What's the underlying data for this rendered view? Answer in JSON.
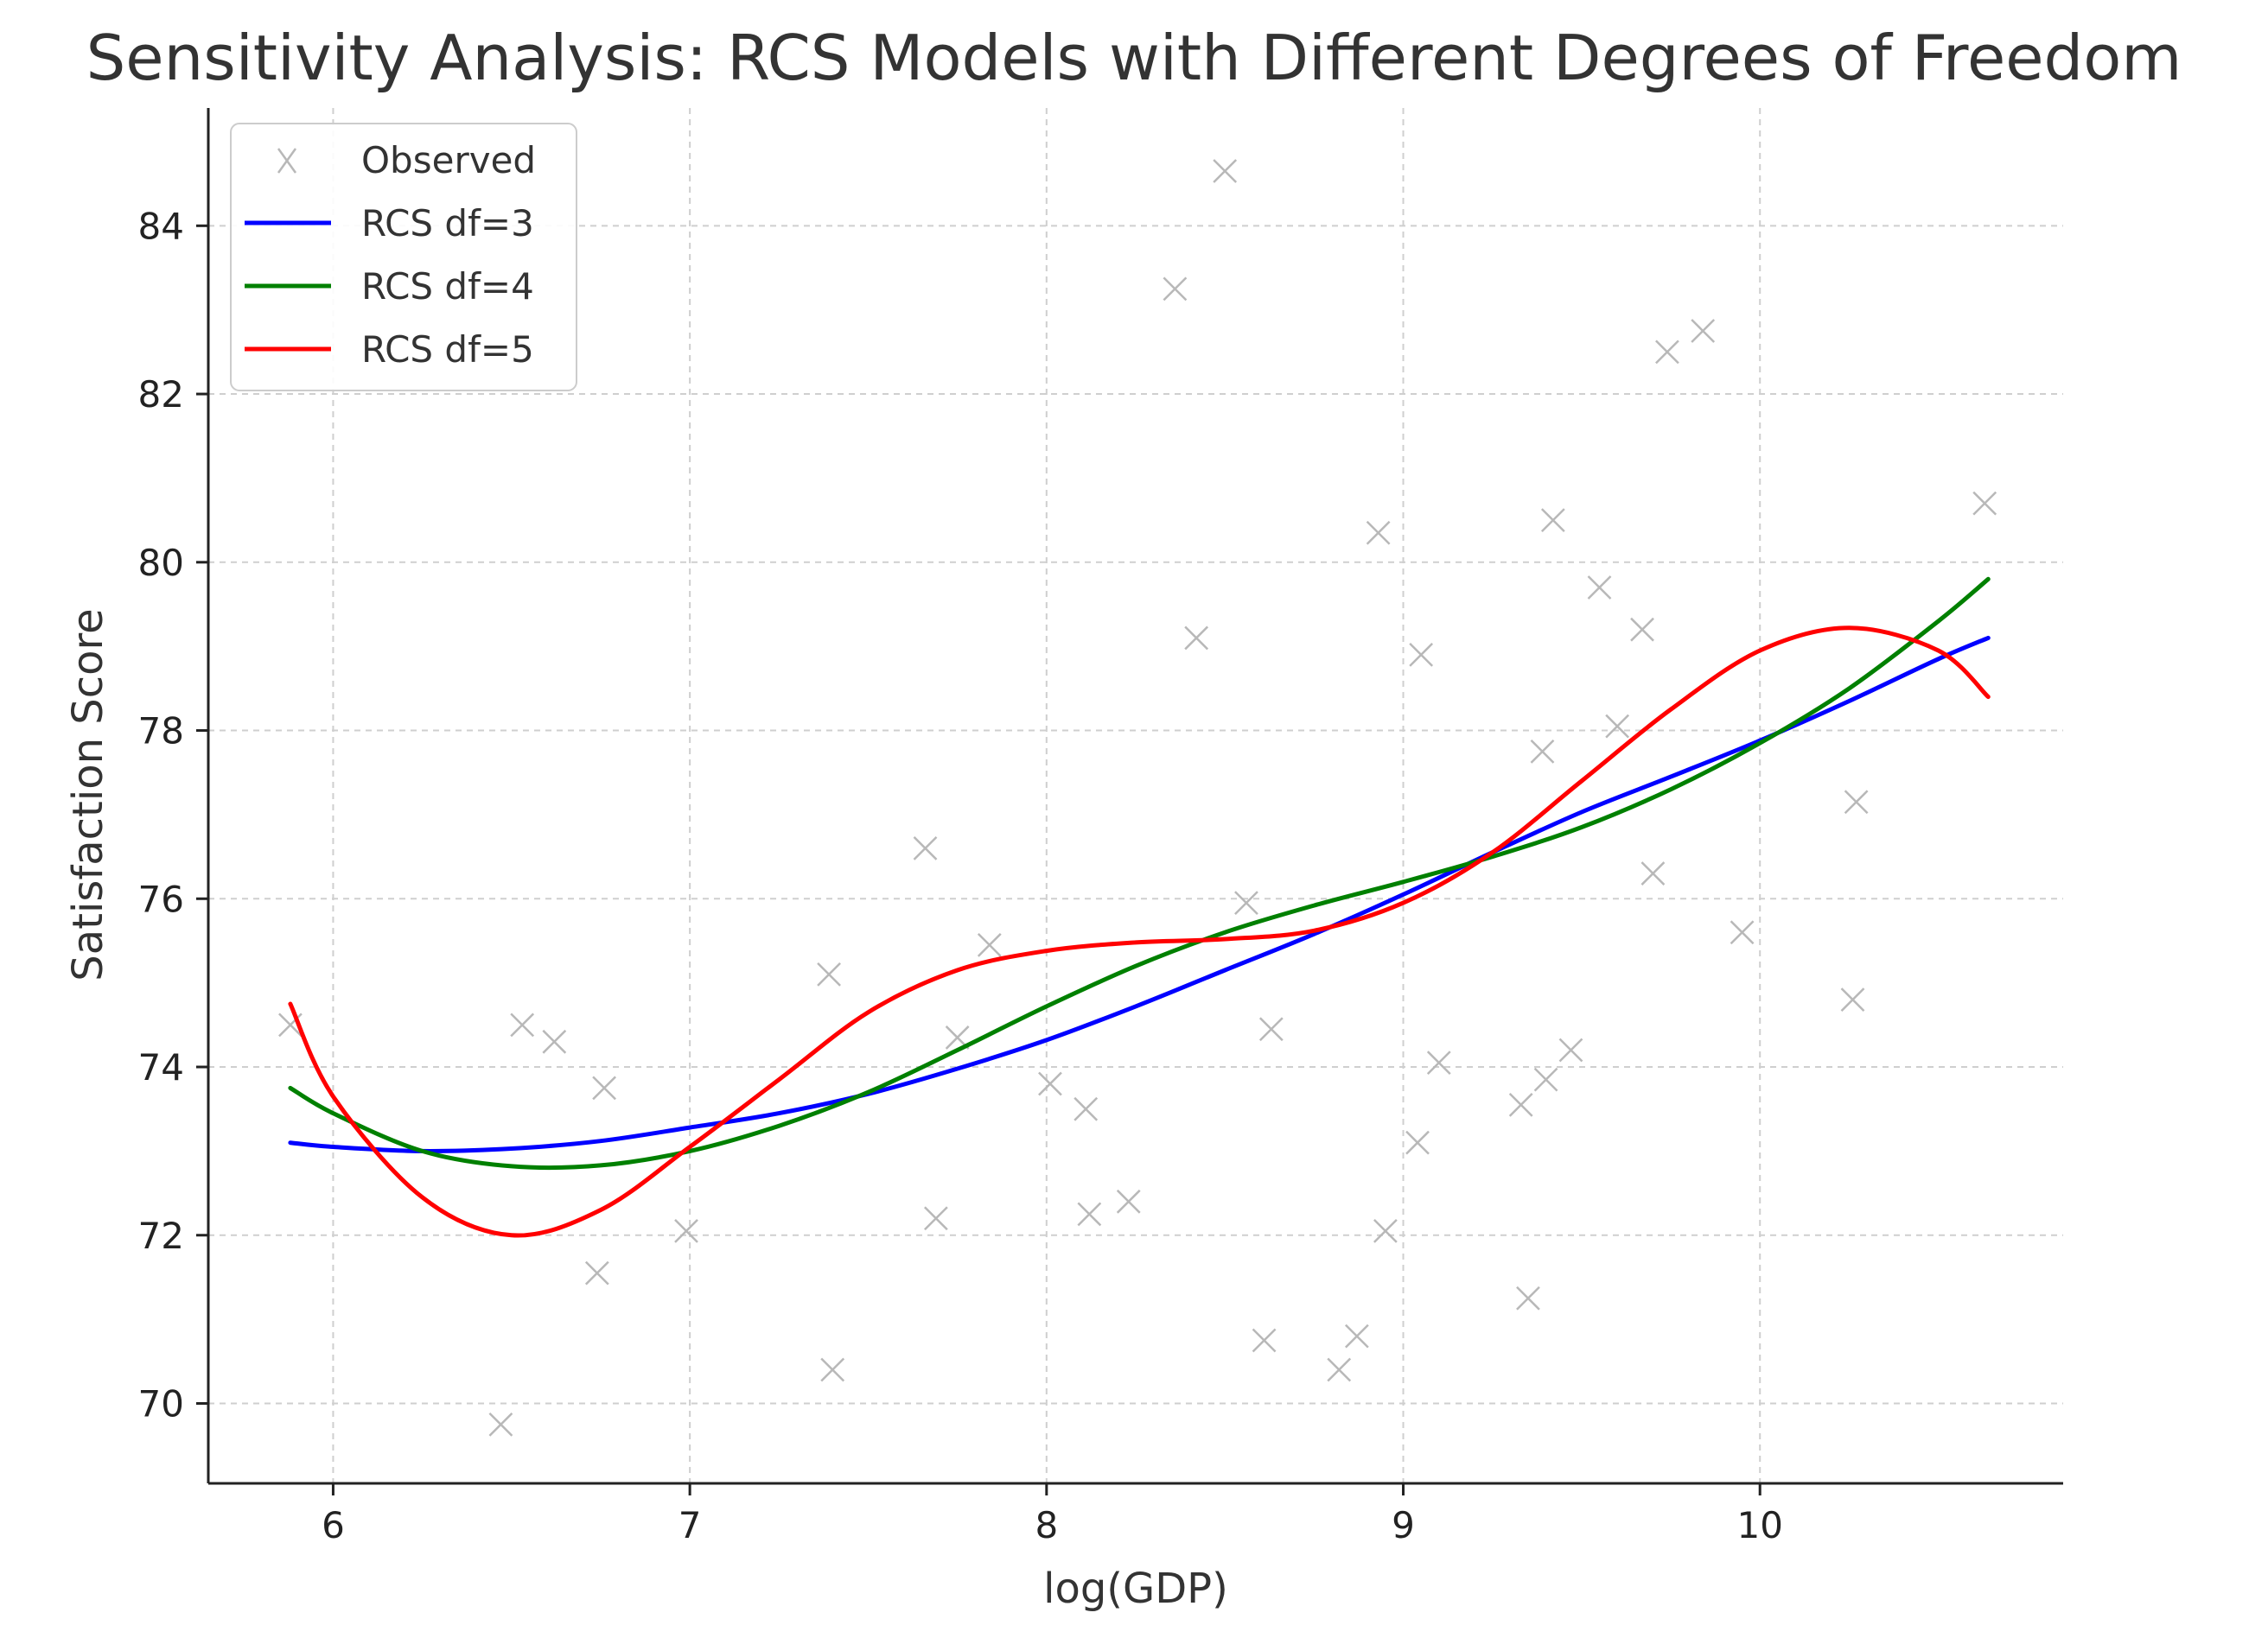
{
  "chart_data": {
    "type": "scatter",
    "title": "Sensitivity Analysis: RCS Models with Different Degrees of Freedom",
    "xlabel": "log(GDP)",
    "ylabel": "Satisfaction Score",
    "xlim": [
      5.65,
      10.85
    ],
    "ylim": [
      69.05,
      85.4
    ],
    "xticks": [
      6,
      7,
      8,
      9,
      10
    ],
    "yticks": [
      70,
      72,
      74,
      76,
      78,
      80,
      82,
      84
    ],
    "grid": true,
    "legend_position": "top-left",
    "observed": {
      "name": "Observed",
      "color": "#b8b8b8",
      "points": [
        [
          5.88,
          74.5
        ],
        [
          6.47,
          69.75
        ],
        [
          6.53,
          74.5
        ],
        [
          6.62,
          74.3
        ],
        [
          6.74,
          71.55
        ],
        [
          6.76,
          73.75
        ],
        [
          6.99,
          72.05
        ],
        [
          7.39,
          75.1
        ],
        [
          7.4,
          70.4
        ],
        [
          7.66,
          76.6
        ],
        [
          7.69,
          72.2
        ],
        [
          7.75,
          74.35
        ],
        [
          7.84,
          75.45
        ],
        [
          8.01,
          73.8
        ],
        [
          8.11,
          73.5
        ],
        [
          8.12,
          72.25
        ],
        [
          8.23,
          72.4
        ],
        [
          8.36,
          83.25
        ],
        [
          8.42,
          79.1
        ],
        [
          8.5,
          84.65
        ],
        [
          8.56,
          75.95
        ],
        [
          8.61,
          70.75
        ],
        [
          8.63,
          74.45
        ],
        [
          8.82,
          70.4
        ],
        [
          8.87,
          70.8
        ],
        [
          8.93,
          80.35
        ],
        [
          8.95,
          72.05
        ],
        [
          9.04,
          73.1
        ],
        [
          9.05,
          78.9
        ],
        [
          9.1,
          74.05
        ],
        [
          9.33,
          73.55
        ],
        [
          9.35,
          71.25
        ],
        [
          9.39,
          77.75
        ],
        [
          9.4,
          73.85
        ],
        [
          9.42,
          80.5
        ],
        [
          9.47,
          74.2
        ],
        [
          9.55,
          79.7
        ],
        [
          9.6,
          78.05
        ],
        [
          9.67,
          79.2
        ],
        [
          9.7,
          76.3
        ],
        [
          9.74,
          82.5
        ],
        [
          9.84,
          82.75
        ],
        [
          9.95,
          75.6
        ],
        [
          10.26,
          74.8
        ],
        [
          10.27,
          77.15
        ],
        [
          10.63,
          80.7
        ]
      ]
    },
    "series": [
      {
        "name": "RCS df=3",
        "color": "#0000ff",
        "x": [
          5.88,
          6.0,
          6.25,
          6.5,
          6.75,
          7.0,
          7.25,
          7.5,
          7.75,
          8.0,
          8.25,
          8.5,
          8.75,
          9.0,
          9.25,
          9.5,
          9.75,
          10.0,
          10.25,
          10.5,
          10.64
        ],
        "y": [
          73.1,
          73.05,
          73.0,
          73.03,
          73.12,
          73.28,
          73.45,
          73.68,
          73.98,
          74.32,
          74.72,
          75.15,
          75.58,
          76.05,
          76.55,
          77.03,
          77.45,
          77.88,
          78.35,
          78.85,
          79.1
        ]
      },
      {
        "name": "RCS df=4",
        "color": "#008000",
        "x": [
          5.88,
          6.0,
          6.25,
          6.5,
          6.75,
          7.0,
          7.25,
          7.5,
          7.75,
          8.0,
          8.25,
          8.5,
          8.75,
          9.0,
          9.25,
          9.5,
          9.75,
          10.0,
          10.25,
          10.5,
          10.64
        ],
        "y": [
          73.75,
          73.45,
          73.0,
          72.82,
          72.83,
          73.0,
          73.3,
          73.7,
          74.2,
          74.72,
          75.2,
          75.6,
          75.92,
          76.2,
          76.5,
          76.85,
          77.3,
          77.85,
          78.5,
          79.3,
          79.8
        ]
      },
      {
        "name": "RCS df=5",
        "color": "#ff0000",
        "x": [
          5.88,
          6.0,
          6.25,
          6.5,
          6.75,
          7.0,
          7.25,
          7.5,
          7.75,
          8.0,
          8.25,
          8.5,
          8.75,
          9.0,
          9.25,
          9.5,
          9.75,
          10.0,
          10.25,
          10.5,
          10.64
        ],
        "y": [
          74.75,
          73.65,
          72.45,
          72.0,
          72.3,
          73.05,
          73.85,
          74.65,
          75.15,
          75.38,
          75.48,
          75.52,
          75.62,
          75.95,
          76.55,
          77.4,
          78.25,
          78.95,
          79.22,
          78.95,
          78.4
        ]
      }
    ]
  }
}
